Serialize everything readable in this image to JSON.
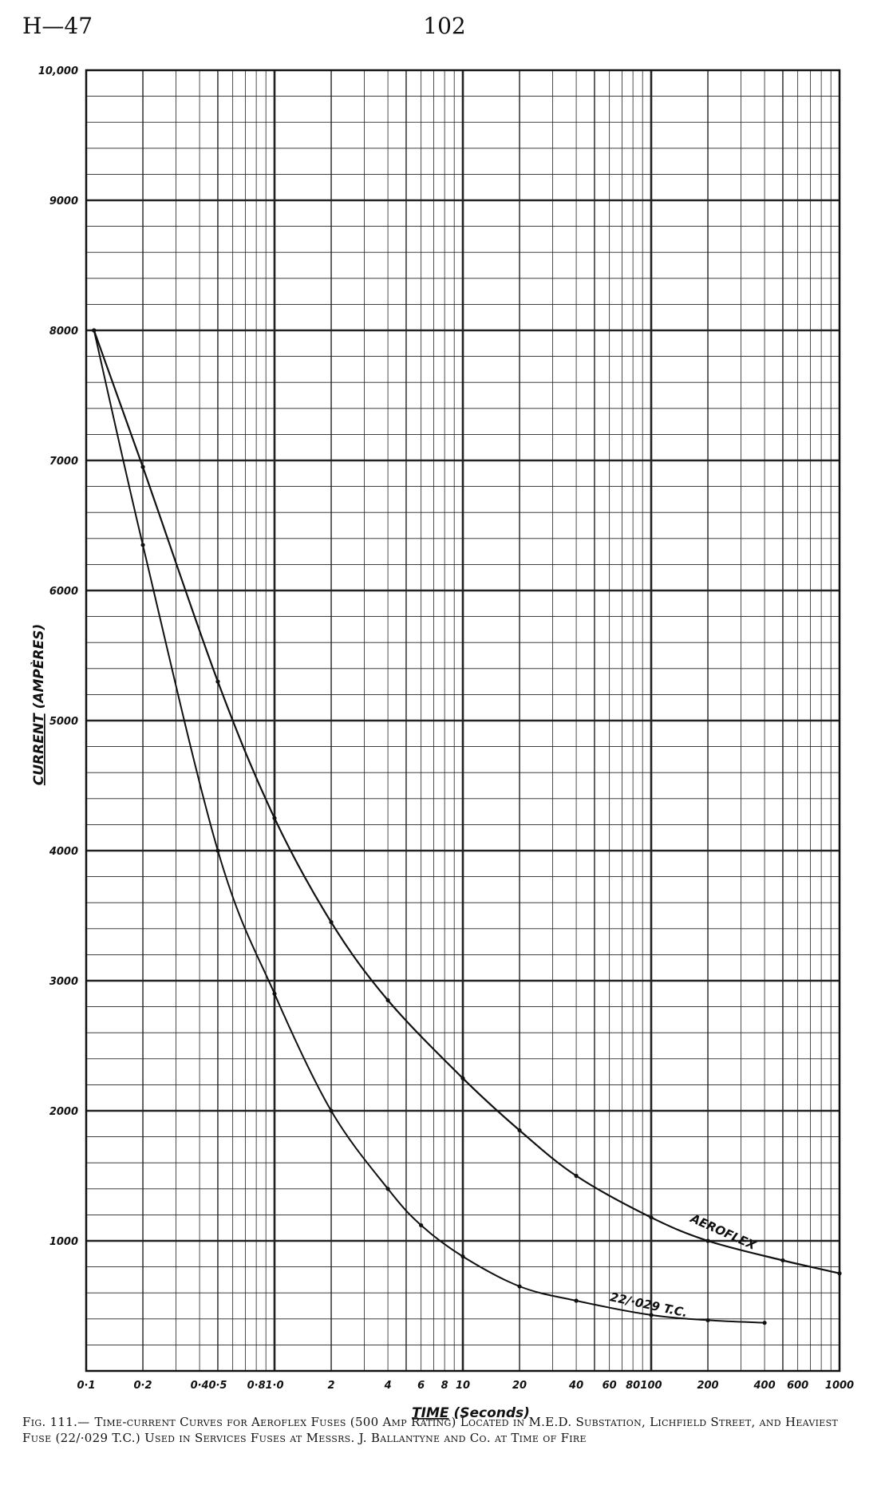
{
  "header": {
    "page_ref": "H—47",
    "page_number": "102"
  },
  "caption": {
    "figure_number": "Fig. 111.—",
    "text": "Time-current Curves for Aeroflex Fuses (500 Amp Rating) Located in M.E.D. Substation, Lichfield Street, and Heaviest Fuse (22/·029 T.C.) Used in Services Fuses at Messrs. J. Ballantyne and Co. at Time of Fire"
  },
  "chart_data": {
    "type": "line",
    "title": "",
    "xlabel_underlined": "TIME",
    "xlabel_rest": "(Seconds)",
    "ylabel_underlined": "CURRENT",
    "ylabel_rest": "(AMPÈRES)",
    "x_scale": "log",
    "xlim": [
      0.1,
      1000
    ],
    "ylim": [
      0,
      10000
    ],
    "grid": true,
    "x_tick_labels": [
      {
        "value": 0.1,
        "label": "0·1"
      },
      {
        "value": 0.2,
        "label": "0·2"
      },
      {
        "value": 0.4,
        "label": "0·4"
      },
      {
        "value": 0.5,
        "label": "0·5"
      },
      {
        "value": 0.8,
        "label": "0·8"
      },
      {
        "value": 1,
        "label": "1·0"
      },
      {
        "value": 2,
        "label": "2"
      },
      {
        "value": 4,
        "label": "4"
      },
      {
        "value": 6,
        "label": "6"
      },
      {
        "value": 8,
        "label": "8"
      },
      {
        "value": 10,
        "label": "10"
      },
      {
        "value": 20,
        "label": "20"
      },
      {
        "value": 40,
        "label": "40"
      },
      {
        "value": 60,
        "label": "60"
      },
      {
        "value": 80,
        "label": "80"
      },
      {
        "value": 100,
        "label": "100"
      },
      {
        "value": 200,
        "label": "200"
      },
      {
        "value": 400,
        "label": "400"
      },
      {
        "value": 600,
        "label": "600"
      },
      {
        "value": 1000,
        "label": "1000"
      }
    ],
    "y_tick_labels": [
      {
        "value": 1000,
        "label": "1000"
      },
      {
        "value": 2000,
        "label": "2000"
      },
      {
        "value": 3000,
        "label": "3000"
      },
      {
        "value": 4000,
        "label": "4000"
      },
      {
        "value": 5000,
        "label": "5000"
      },
      {
        "value": 6000,
        "label": "6000"
      },
      {
        "value": 7000,
        "label": "7000"
      },
      {
        "value": 8000,
        "label": "8000"
      },
      {
        "value": 9000,
        "label": "9000"
      },
      {
        "value": 10000,
        "label": "10,000"
      }
    ],
    "series": [
      {
        "name": "AEROFLEX",
        "label_at": {
          "x": 160,
          "y": 1150
        },
        "points": [
          {
            "x": 0.11,
            "y": 8000
          },
          {
            "x": 0.2,
            "y": 6950
          },
          {
            "x": 0.5,
            "y": 5300
          },
          {
            "x": 1,
            "y": 4250
          },
          {
            "x": 2,
            "y": 3450
          },
          {
            "x": 4,
            "y": 2850
          },
          {
            "x": 10,
            "y": 2250
          },
          {
            "x": 20,
            "y": 1850
          },
          {
            "x": 40,
            "y": 1500
          },
          {
            "x": 100,
            "y": 1180
          },
          {
            "x": 200,
            "y": 1000
          },
          {
            "x": 500,
            "y": 850
          },
          {
            "x": 1000,
            "y": 750
          }
        ]
      },
      {
        "name": "22/·029 T.C.",
        "label_at": {
          "x": 60,
          "y": 540
        },
        "points": [
          {
            "x": 0.11,
            "y": 8000
          },
          {
            "x": 0.2,
            "y": 6350
          },
          {
            "x": 0.5,
            "y": 4000
          },
          {
            "x": 1,
            "y": 2900
          },
          {
            "x": 2,
            "y": 2000
          },
          {
            "x": 4,
            "y": 1400
          },
          {
            "x": 6,
            "y": 1120
          },
          {
            "x": 10,
            "y": 880
          },
          {
            "x": 20,
            "y": 650
          },
          {
            "x": 40,
            "y": 540
          },
          {
            "x": 100,
            "y": 430
          },
          {
            "x": 200,
            "y": 390
          },
          {
            "x": 400,
            "y": 370
          }
        ]
      }
    ]
  }
}
